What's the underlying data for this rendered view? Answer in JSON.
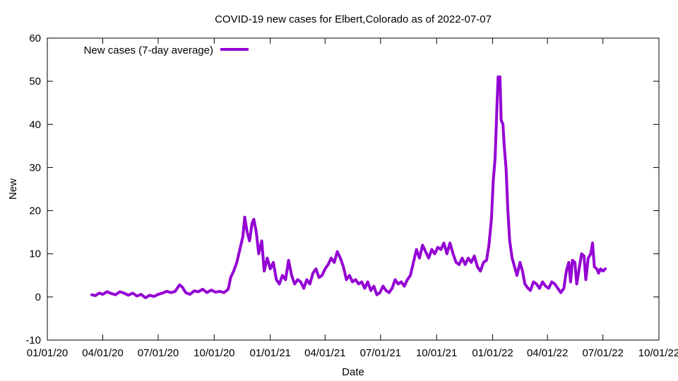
{
  "chart_data": {
    "type": "line",
    "title": "COVID-19 new cases for Elbert,Colorado as of 2022-07-07",
    "xlabel": "Date",
    "ylabel": "New",
    "ylim": [
      -10,
      60
    ],
    "yticks": [
      -10,
      0,
      10,
      20,
      30,
      40,
      50,
      60
    ],
    "xlim": [
      "2020-01-01",
      "2022-10-01"
    ],
    "xticks": [
      {
        "date": "2020-01-01",
        "label": "01/01/20"
      },
      {
        "date": "2020-04-01",
        "label": "04/01/20"
      },
      {
        "date": "2020-07-01",
        "label": "07/01/20"
      },
      {
        "date": "2020-10-01",
        "label": "10/01/20"
      },
      {
        "date": "2021-01-01",
        "label": "01/01/21"
      },
      {
        "date": "2021-04-01",
        "label": "04/01/21"
      },
      {
        "date": "2021-07-01",
        "label": "07/01/21"
      },
      {
        "date": "2021-10-01",
        "label": "10/01/21"
      },
      {
        "date": "2022-01-01",
        "label": "01/01/22"
      },
      {
        "date": "2022-04-01",
        "label": "04/01/22"
      },
      {
        "date": "2022-07-01",
        "label": "07/01/22"
      },
      {
        "date": "2022-10-01",
        "label": "10/01/22"
      }
    ],
    "legend_position": "top-left",
    "grid": false,
    "series": [
      {
        "name": "New cases (7-day average)",
        "color": "#9400d3",
        "points": [
          [
            "2020-03-14",
            0.5
          ],
          [
            "2020-03-20",
            0.3
          ],
          [
            "2020-03-26",
            0.9
          ],
          [
            "2020-04-01",
            0.6
          ],
          [
            "2020-04-08",
            1.2
          ],
          [
            "2020-04-15",
            0.8
          ],
          [
            "2020-04-22",
            0.5
          ],
          [
            "2020-04-29",
            1.2
          ],
          [
            "2020-05-06",
            0.9
          ],
          [
            "2020-05-13",
            0.4
          ],
          [
            "2020-05-20",
            0.9
          ],
          [
            "2020-05-27",
            0.2
          ],
          [
            "2020-06-03",
            0.6
          ],
          [
            "2020-06-10",
            -0.2
          ],
          [
            "2020-06-17",
            0.4
          ],
          [
            "2020-06-24",
            0.1
          ],
          [
            "2020-07-01",
            0.6
          ],
          [
            "2020-07-08",
            0.9
          ],
          [
            "2020-07-15",
            1.3
          ],
          [
            "2020-07-22",
            1.0
          ],
          [
            "2020-07-29",
            1.3
          ],
          [
            "2020-08-05",
            2.8
          ],
          [
            "2020-08-10",
            2.2
          ],
          [
            "2020-08-15",
            1.0
          ],
          [
            "2020-08-22",
            0.6
          ],
          [
            "2020-08-29",
            1.4
          ],
          [
            "2020-09-05",
            1.2
          ],
          [
            "2020-09-12",
            1.8
          ],
          [
            "2020-09-19",
            1.0
          ],
          [
            "2020-09-26",
            1.6
          ],
          [
            "2020-10-03",
            1.1
          ],
          [
            "2020-10-10",
            1.3
          ],
          [
            "2020-10-17",
            1.0
          ],
          [
            "2020-10-24",
            1.8
          ],
          [
            "2020-10-28",
            4.5
          ],
          [
            "2020-11-02",
            6.0
          ],
          [
            "2020-11-07",
            8.0
          ],
          [
            "2020-11-12",
            11.0
          ],
          [
            "2020-11-17",
            14.0
          ],
          [
            "2020-11-20",
            18.5
          ],
          [
            "2020-11-24",
            15.0
          ],
          [
            "2020-11-28",
            13.0
          ],
          [
            "2020-12-02",
            17.0
          ],
          [
            "2020-12-05",
            18.0
          ],
          [
            "2020-12-09",
            15.0
          ],
          [
            "2020-12-13",
            10.0
          ],
          [
            "2020-12-18",
            13.0
          ],
          [
            "2020-12-22",
            6.0
          ],
          [
            "2020-12-27",
            9.0
          ],
          [
            "2021-01-01",
            6.5
          ],
          [
            "2021-01-06",
            8.0
          ],
          [
            "2021-01-11",
            4.0
          ],
          [
            "2021-01-16",
            3.0
          ],
          [
            "2021-01-21",
            5.0
          ],
          [
            "2021-01-26",
            4.0
          ],
          [
            "2021-01-31",
            8.5
          ],
          [
            "2021-02-05",
            5.0
          ],
          [
            "2021-02-10",
            3.0
          ],
          [
            "2021-02-15",
            4.0
          ],
          [
            "2021-02-20",
            3.5
          ],
          [
            "2021-02-25",
            2.0
          ],
          [
            "2021-03-02",
            4.0
          ],
          [
            "2021-03-07",
            3.0
          ],
          [
            "2021-03-12",
            5.5
          ],
          [
            "2021-03-17",
            6.5
          ],
          [
            "2021-03-22",
            4.5
          ],
          [
            "2021-03-27",
            5.0
          ],
          [
            "2021-04-01",
            6.5
          ],
          [
            "2021-04-06",
            7.5
          ],
          [
            "2021-04-11",
            9.0
          ],
          [
            "2021-04-16",
            8.0
          ],
          [
            "2021-04-21",
            10.5
          ],
          [
            "2021-04-26",
            9.0
          ],
          [
            "2021-05-01",
            7.0
          ],
          [
            "2021-05-06",
            4.0
          ],
          [
            "2021-05-11",
            5.0
          ],
          [
            "2021-05-16",
            3.5
          ],
          [
            "2021-05-21",
            4.0
          ],
          [
            "2021-05-26",
            3.0
          ],
          [
            "2021-05-31",
            3.5
          ],
          [
            "2021-06-05",
            2.0
          ],
          [
            "2021-06-10",
            3.5
          ],
          [
            "2021-06-15",
            1.5
          ],
          [
            "2021-06-20",
            2.5
          ],
          [
            "2021-06-25",
            0.5
          ],
          [
            "2021-06-30",
            1.0
          ],
          [
            "2021-07-05",
            2.5
          ],
          [
            "2021-07-10",
            1.5
          ],
          [
            "2021-07-15",
            1.0
          ],
          [
            "2021-07-20",
            2.0
          ],
          [
            "2021-07-25",
            4.0
          ],
          [
            "2021-07-30",
            3.0
          ],
          [
            "2021-08-04",
            3.5
          ],
          [
            "2021-08-09",
            2.5
          ],
          [
            "2021-08-14",
            4.0
          ],
          [
            "2021-08-19",
            5.0
          ],
          [
            "2021-08-24",
            8.0
          ],
          [
            "2021-08-29",
            11.0
          ],
          [
            "2021-09-03",
            9.0
          ],
          [
            "2021-09-08",
            12.0
          ],
          [
            "2021-09-13",
            10.5
          ],
          [
            "2021-09-18",
            9.0
          ],
          [
            "2021-09-23",
            11.0
          ],
          [
            "2021-09-28",
            10.0
          ],
          [
            "2021-10-03",
            11.5
          ],
          [
            "2021-10-08",
            11.0
          ],
          [
            "2021-10-13",
            12.5
          ],
          [
            "2021-10-18",
            10.0
          ],
          [
            "2021-10-23",
            12.5
          ],
          [
            "2021-10-28",
            10.0
          ],
          [
            "2021-11-02",
            8.0
          ],
          [
            "2021-11-07",
            7.5
          ],
          [
            "2021-11-12",
            9.0
          ],
          [
            "2021-11-17",
            7.5
          ],
          [
            "2021-11-22",
            9.0
          ],
          [
            "2021-11-27",
            8.0
          ],
          [
            "2021-12-02",
            9.5
          ],
          [
            "2021-12-07",
            7.0
          ],
          [
            "2021-12-12",
            6.0
          ],
          [
            "2021-12-17",
            8.0
          ],
          [
            "2021-12-22",
            8.5
          ],
          [
            "2021-12-26",
            12.0
          ],
          [
            "2021-12-30",
            18.0
          ],
          [
            "2022-01-02",
            27.0
          ],
          [
            "2022-01-05",
            32.0
          ],
          [
            "2022-01-08",
            44.0
          ],
          [
            "2022-01-10",
            51.0
          ],
          [
            "2022-01-13",
            51.0
          ],
          [
            "2022-01-15",
            41.0
          ],
          [
            "2022-01-18",
            40.0
          ],
          [
            "2022-01-20",
            35.0
          ],
          [
            "2022-01-23",
            30.0
          ],
          [
            "2022-01-26",
            20.0
          ],
          [
            "2022-01-29",
            13.0
          ],
          [
            "2022-02-02",
            9.0
          ],
          [
            "2022-02-06",
            7.0
          ],
          [
            "2022-02-10",
            5.0
          ],
          [
            "2022-02-15",
            8.0
          ],
          [
            "2022-02-19",
            6.0
          ],
          [
            "2022-02-23",
            3.0
          ],
          [
            "2022-02-28",
            2.0
          ],
          [
            "2022-03-04",
            1.5
          ],
          [
            "2022-03-09",
            3.5
          ],
          [
            "2022-03-14",
            3.0
          ],
          [
            "2022-03-19",
            2.0
          ],
          [
            "2022-03-24",
            3.5
          ],
          [
            "2022-03-29",
            2.5
          ],
          [
            "2022-04-03",
            2.0
          ],
          [
            "2022-04-08",
            3.5
          ],
          [
            "2022-04-13",
            3.0
          ],
          [
            "2022-04-18",
            2.0
          ],
          [
            "2022-04-23",
            1.0
          ],
          [
            "2022-04-28",
            2.0
          ],
          [
            "2022-05-02",
            6.0
          ],
          [
            "2022-05-06",
            8.0
          ],
          [
            "2022-05-09",
            3.5
          ],
          [
            "2022-05-12",
            8.5
          ],
          [
            "2022-05-16",
            8.0
          ],
          [
            "2022-05-19",
            3.0
          ],
          [
            "2022-05-23",
            6.5
          ],
          [
            "2022-05-27",
            10.0
          ],
          [
            "2022-05-31",
            9.5
          ],
          [
            "2022-06-03",
            4.0
          ],
          [
            "2022-06-07",
            9.0
          ],
          [
            "2022-06-11",
            10.0
          ],
          [
            "2022-06-14",
            12.5
          ],
          [
            "2022-06-17",
            7.0
          ],
          [
            "2022-06-21",
            6.5
          ],
          [
            "2022-06-24",
            5.5
          ],
          [
            "2022-06-27",
            6.5
          ],
          [
            "2022-07-01",
            6.0
          ],
          [
            "2022-07-05",
            6.5
          ]
        ]
      }
    ]
  }
}
